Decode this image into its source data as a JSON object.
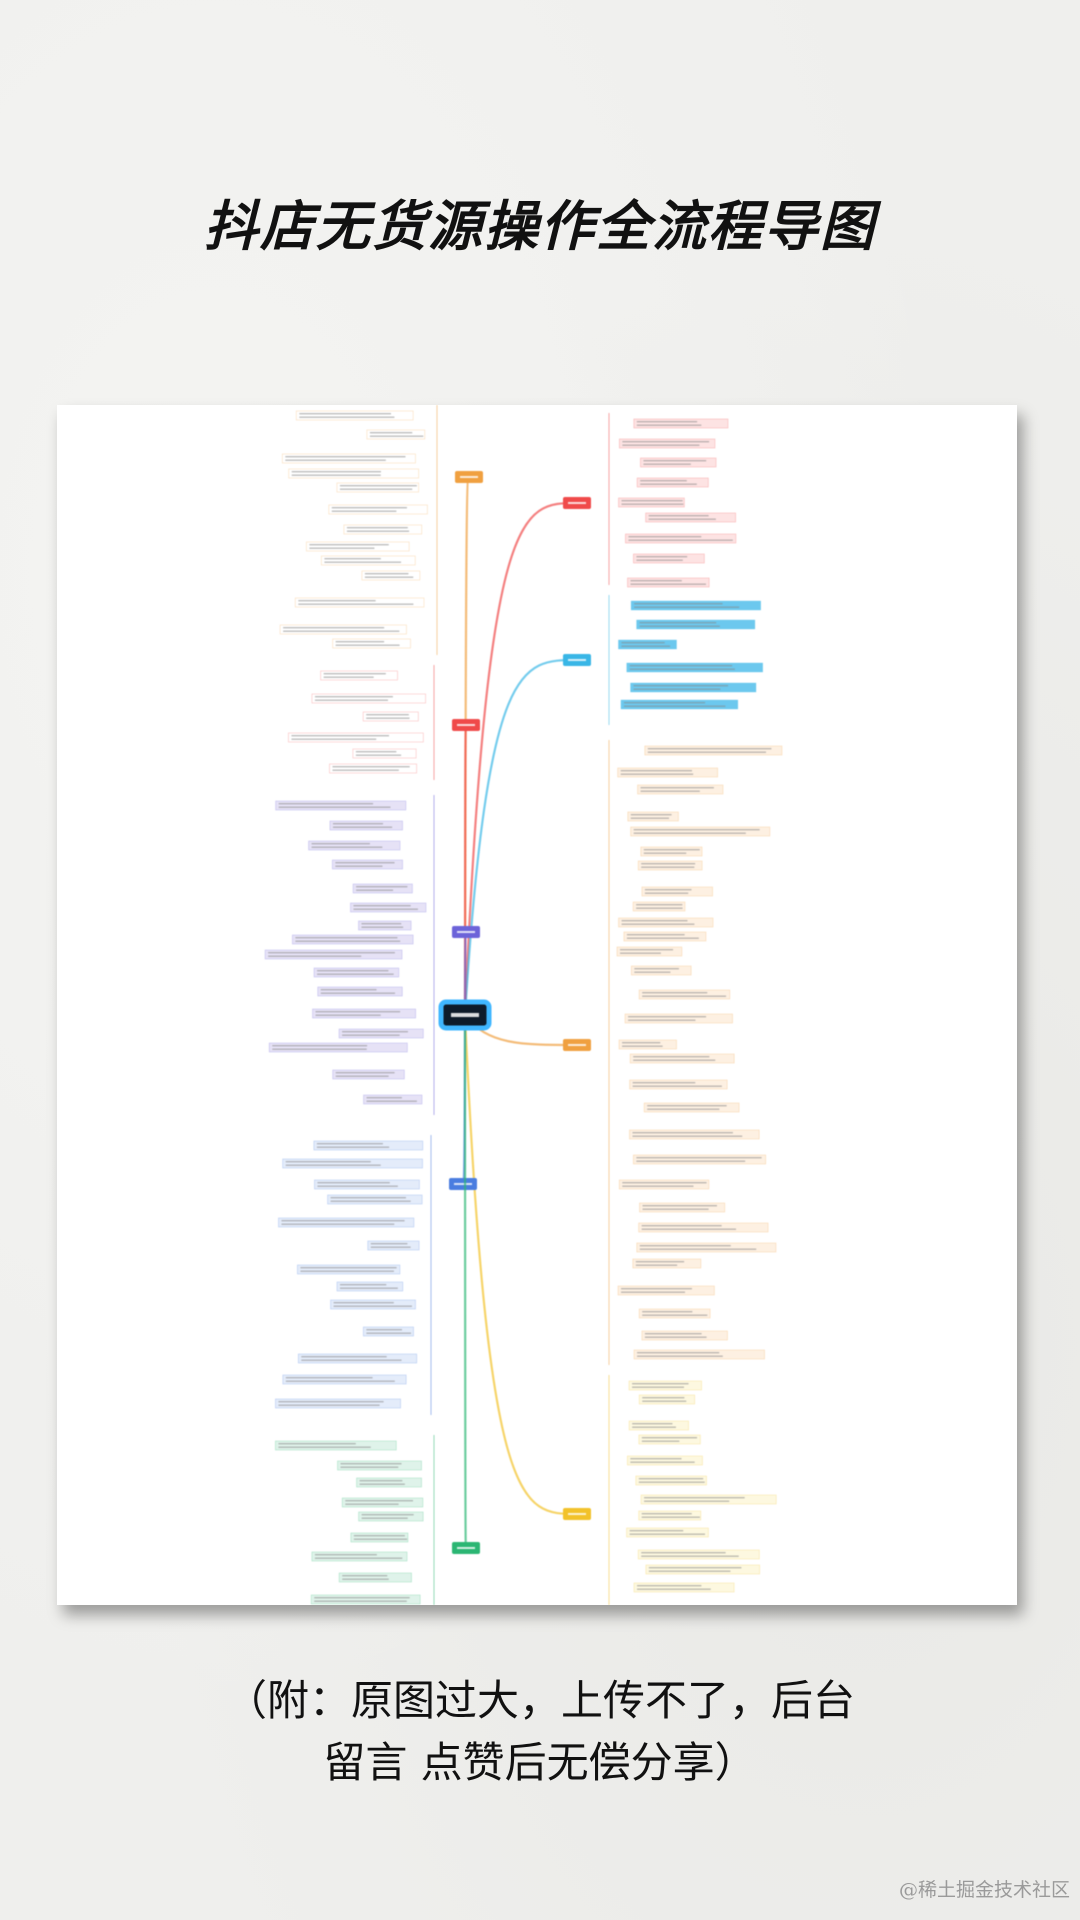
{
  "title": "抖店无货源操作全流程导图",
  "caption": {
    "line1": "（附：原图过大，上传不了，后台",
    "line2": "留言 点赞后无偿分享）"
  },
  "watermark": "@稀土掘金技术社区",
  "mindmap": {
    "center_color": "#0d1b2a",
    "center_border": "#3fb6ff",
    "branches": [
      {
        "side": "right",
        "color": "#f04a4a",
        "fill": "#fde3e3"
      },
      {
        "side": "right",
        "color": "#39b6e6",
        "fill": "#6cc8ee"
      },
      {
        "side": "right",
        "color": "#f0a040",
        "fill": "#fdf0e2"
      },
      {
        "side": "right",
        "color": "#f2c22a",
        "fill": "#fdf8e0"
      },
      {
        "side": "left",
        "color": "#f0a040",
        "fill": "#ffffff"
      },
      {
        "side": "left",
        "color": "#f04a4a",
        "fill": "#ffffff"
      },
      {
        "side": "left",
        "color": "#6c63d9",
        "fill": "#e6e2f6"
      },
      {
        "side": "left",
        "color": "#4a7de0",
        "fill": "#e4ecfa"
      },
      {
        "side": "left",
        "color": "#2bb673",
        "fill": "#dff3ea"
      }
    ]
  }
}
